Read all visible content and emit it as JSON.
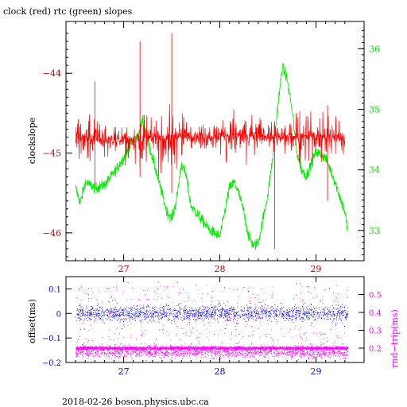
{
  "page_title": "clock (red) rtc (green) slopes",
  "footer": "2018-02-26 boson.physics.ubc.ca",
  "colors": {
    "clock": "#ff0000",
    "clock_dark": "#cc0000",
    "rtc": "#00ee00",
    "offset": "#0000ff",
    "rnd_trip": "#ff00ff",
    "axis": "#000000",
    "bottom_axis": "#0000ff"
  },
  "chart_data": [
    {
      "type": "line",
      "title": "clock (red) rtc (green) slopes",
      "xlabel": "",
      "ylabel": "clockslope",
      "y2label": "",
      "xlim": [
        26.4,
        29.5
      ],
      "ylim": [
        -46.35,
        -43.35
      ],
      "y2lim": [
        32.5,
        36.45
      ],
      "x_ticks": [
        27,
        28,
        29
      ],
      "y_ticks": [
        -44,
        -45,
        -46
      ],
      "y2_ticks": [
        33,
        34,
        35,
        36
      ],
      "grid": false,
      "series": [
        {
          "name": "clock",
          "axis": "left",
          "color": "#ff0000",
          "x": [
            26.5,
            26.7,
            26.9,
            27.1,
            27.3,
            27.5,
            27.7,
            27.9,
            28.1,
            28.3,
            28.5,
            28.6,
            28.7,
            28.9,
            29.1,
            29.3
          ],
          "center": [
            -44.8,
            -44.82,
            -44.84,
            -44.83,
            -44.82,
            -44.8,
            -44.79,
            -44.79,
            -44.78,
            -44.78,
            -44.8,
            -44.82,
            -44.79,
            -44.78,
            -44.8,
            -44.81
          ],
          "spread": [
            0.55,
            0.5,
            0.3,
            0.55,
            0.6,
            0.75,
            0.35,
            0.3,
            0.55,
            0.5,
            0.4,
            0.35,
            0.6,
            0.65,
            0.55,
            0.55
          ]
        },
        {
          "name": "rtc",
          "axis": "right",
          "color": "#00ee00",
          "x": [
            26.5,
            26.55,
            26.6,
            26.7,
            26.8,
            26.9,
            27.0,
            27.1,
            27.15,
            27.2,
            27.25,
            27.3,
            27.35,
            27.4,
            27.45,
            27.5,
            27.55,
            27.6,
            27.65,
            27.7,
            27.8,
            27.9,
            28.0,
            28.05,
            28.1,
            28.15,
            28.2,
            28.25,
            28.3,
            28.35,
            28.4,
            28.45,
            28.5,
            28.55,
            28.6,
            28.65,
            28.7,
            28.75,
            28.8,
            28.85,
            28.9,
            29.0,
            29.1,
            29.2,
            29.3,
            29.33
          ],
          "y": [
            33.7,
            33.45,
            33.8,
            33.7,
            33.75,
            33.95,
            34.2,
            34.5,
            34.55,
            34.85,
            34.5,
            34.2,
            33.9,
            33.6,
            33.3,
            33.2,
            33.5,
            34.1,
            33.9,
            33.4,
            33.2,
            33.0,
            32.9,
            33.3,
            33.7,
            33.8,
            33.6,
            33.3,
            32.9,
            32.75,
            32.8,
            33.2,
            33.6,
            34.2,
            35.0,
            35.7,
            35.5,
            35.0,
            34.3,
            34.0,
            33.9,
            34.3,
            34.2,
            33.8,
            33.3,
            33.0
          ]
        }
      ]
    },
    {
      "type": "scatter",
      "xlabel": "",
      "ylabel": "offset(ms)",
      "y2label": "rnd−trip(ms)",
      "xlim": [
        26.4,
        29.5
      ],
      "ylim": [
        -0.2,
        0.15
      ],
      "y2lim": [
        0.12,
        0.6
      ],
      "x_ticks": [
        27,
        28,
        29
      ],
      "y_ticks": [
        0.1,
        0,
        -0.1,
        -0.2
      ],
      "y_tick_labels": [
        "0.1",
        "0",
        "−0.1",
        "−0.2"
      ],
      "y2_ticks": [
        0.2,
        0.3,
        0.4,
        0.5
      ],
      "grid": false,
      "series": [
        {
          "name": "offset",
          "axis": "left",
          "color": "#0000ff",
          "x_range": [
            26.5,
            29.33
          ],
          "mean": 0.0,
          "spread": 0.03,
          "outlier_range": [
            -0.17,
            0.13
          ]
        },
        {
          "name": "rnd-trip",
          "axis": "right",
          "color": "#ff00ff",
          "x_range": [
            26.5,
            29.33
          ],
          "mean": 0.2,
          "spread": 0.02,
          "outlier_range": [
            0.15,
            0.55
          ]
        }
      ]
    }
  ]
}
